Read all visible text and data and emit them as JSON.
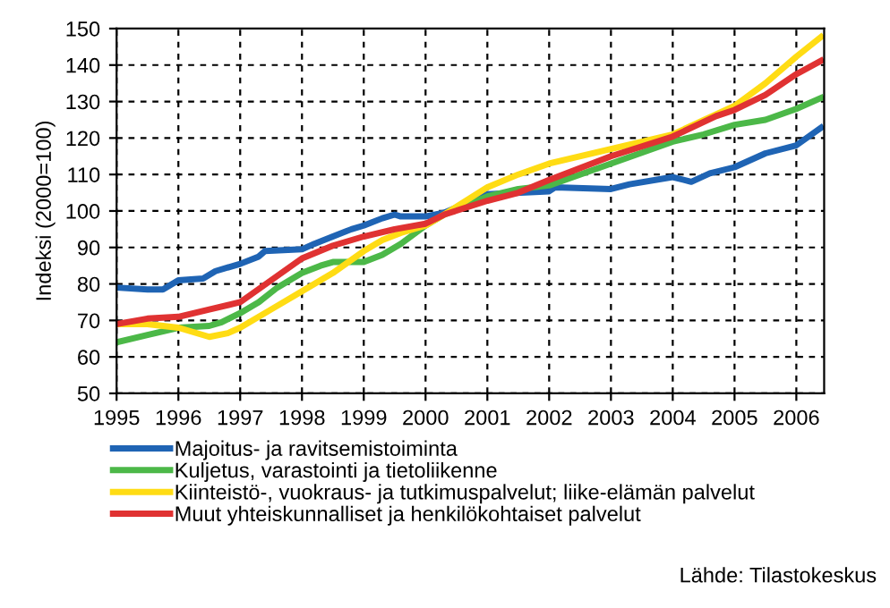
{
  "chart_data": {
    "type": "line",
    "ylabel": "Indeksi (2000=100)",
    "xlim": [
      1995,
      2006.45
    ],
    "xticks": [
      1995,
      1996,
      1997,
      1998,
      1999,
      2000,
      2001,
      2002,
      2003,
      2004,
      2005,
      2006
    ],
    "ylim": [
      50,
      150
    ],
    "yticks": [
      50,
      60,
      70,
      80,
      90,
      100,
      110,
      120,
      130,
      140,
      150
    ],
    "grid": true,
    "line_style": "solid",
    "legend": "bottom",
    "annotations": [
      "Lähde: Tilastokeskus"
    ],
    "series": [
      {
        "name": "Majoitus- ja ravitsemistoiminta",
        "color": "#1f64b4",
        "x": [
          1995,
          1995.5,
          1995.75,
          1996,
          1996.4,
          1996.6,
          1997,
          1997.3,
          1997.4,
          1998,
          1998.2,
          1998.5,
          1998.8,
          1999,
          1999.3,
          1999.5,
          1999.6,
          2000,
          2000.3,
          2001,
          2002,
          2002.1,
          2003,
          2003.3,
          2004,
          2004.3,
          2004.6,
          2005,
          2005.5,
          2006,
          2006.4
        ],
        "values": [
          79,
          78.5,
          78.5,
          81,
          81.5,
          83.5,
          85.5,
          87.5,
          89,
          89.5,
          91,
          93,
          95,
          96,
          98,
          99,
          98.5,
          98.5,
          99.5,
          104.6,
          105.4,
          106.5,
          106,
          107.3,
          109.3,
          108,
          110.3,
          112,
          115.8,
          118,
          122.8
        ]
      },
      {
        "name": "Kuljetus, varastointi ja tietoliikenne",
        "color": "#4cb848",
        "x": [
          1995,
          1995.5,
          1996,
          1996.5,
          1996.7,
          1997,
          1997.3,
          1997.6,
          1998,
          1998.3,
          1998.5,
          1999,
          1999.3,
          1999.6,
          2000,
          2000.3,
          2001,
          2001.5,
          2002,
          2003,
          2004,
          2004.5,
          2005,
          2005.5,
          2006,
          2006.4
        ],
        "values": [
          64,
          66,
          68,
          68.5,
          69.5,
          72,
          75,
          79,
          83,
          85,
          86,
          86,
          88,
          91,
          96,
          99,
          104,
          106,
          107,
          113,
          119,
          121,
          123.6,
          125,
          128,
          131
        ]
      },
      {
        "name": "Kiinteistö-, vuokraus- ja tutkimuspalvelut; liike-elämän palvelut",
        "color": "#ffdc14",
        "x": [
          1995,
          1995.5,
          1996,
          1996.5,
          1996.8,
          1997,
          1997.5,
          1998,
          1998.5,
          1999,
          1999.3,
          1999.6,
          2000,
          2000.3,
          2001,
          2001.5,
          2002,
          2003,
          2004,
          2005,
          2005.5,
          2006,
          2006.4
        ],
        "values": [
          69,
          69,
          68,
          65.5,
          66.5,
          68,
          73,
          78,
          83,
          89,
          92,
          94,
          96,
          99,
          106.5,
          110,
          113,
          117,
          121,
          128.8,
          135,
          142.3,
          147.7
        ]
      },
      {
        "name": "Muut yhteiskunnalliset ja henkilökohtaiset palvelut",
        "color": "#e03232",
        "x": [
          1995,
          1995.5,
          1996,
          1996.5,
          1997,
          1997.5,
          1998,
          1998.5,
          1999,
          1999.5,
          2000,
          2000.3,
          2001,
          2001.5,
          2002,
          2003,
          2004,
          2004.7,
          2005,
          2005.5,
          2006,
          2006.4
        ],
        "values": [
          69,
          70.5,
          71,
          73,
          75,
          81,
          87,
          90.5,
          93,
          95,
          96.5,
          99,
          102.8,
          105,
          108.5,
          115,
          120.4,
          126,
          127.7,
          131.8,
          137.5,
          141.2
        ]
      }
    ]
  }
}
